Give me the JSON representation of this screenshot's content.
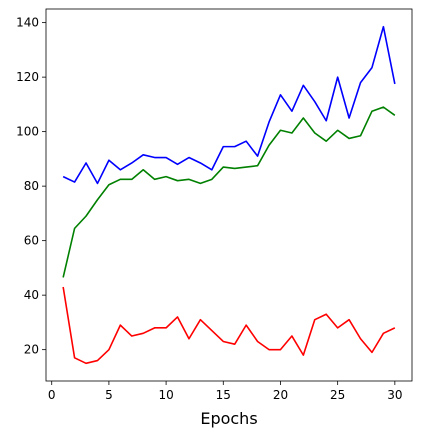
{
  "chart_data": {
    "type": "line",
    "xlabel": "Epochs",
    "ylabel": "",
    "xlim": [
      -0.5,
      31.5
    ],
    "ylim": [
      8.5,
      145
    ],
    "xticks": [
      0,
      5,
      10,
      15,
      20,
      25,
      30
    ],
    "yticks": [
      20,
      40,
      60,
      80,
      100,
      120,
      140
    ],
    "grid": false,
    "x": [
      1,
      2,
      3,
      4,
      5,
      6,
      7,
      8,
      9,
      10,
      11,
      12,
      13,
      14,
      15,
      16,
      17,
      18,
      19,
      20,
      21,
      22,
      23,
      24,
      25,
      26,
      27,
      28,
      29,
      30
    ],
    "series": [
      {
        "color": "#0000ff",
        "values": [
          83.5,
          81.5,
          88.5,
          81,
          89.5,
          86,
          88.5,
          91.5,
          90.5,
          90.5,
          88,
          90.5,
          88.5,
          86,
          94.5,
          94.5,
          96.5,
          91,
          103.5,
          113.5,
          107.5,
          117,
          111,
          104,
          120,
          105,
          118,
          123.5,
          138.5,
          117.5
        ]
      },
      {
        "color": "#008000",
        "values": [
          46.5,
          64.5,
          69,
          75,
          80.5,
          82.5,
          82.5,
          86,
          82.5,
          83.5,
          82,
          82.5,
          81,
          82.5,
          87,
          86.5,
          87,
          87.5,
          95,
          100.5,
          99.5,
          105,
          99.5,
          96.5,
          100.5,
          97.5,
          98.5,
          107.5,
          109,
          106
        ]
      },
      {
        "color": "#ff0000",
        "values": [
          43,
          17,
          15,
          16,
          20,
          29,
          25,
          26,
          28,
          28,
          32,
          24,
          31,
          27,
          23,
          22,
          29,
          23,
          20,
          20,
          25,
          18,
          31,
          33,
          28,
          31,
          24,
          19,
          26,
          28
        ]
      }
    ]
  }
}
